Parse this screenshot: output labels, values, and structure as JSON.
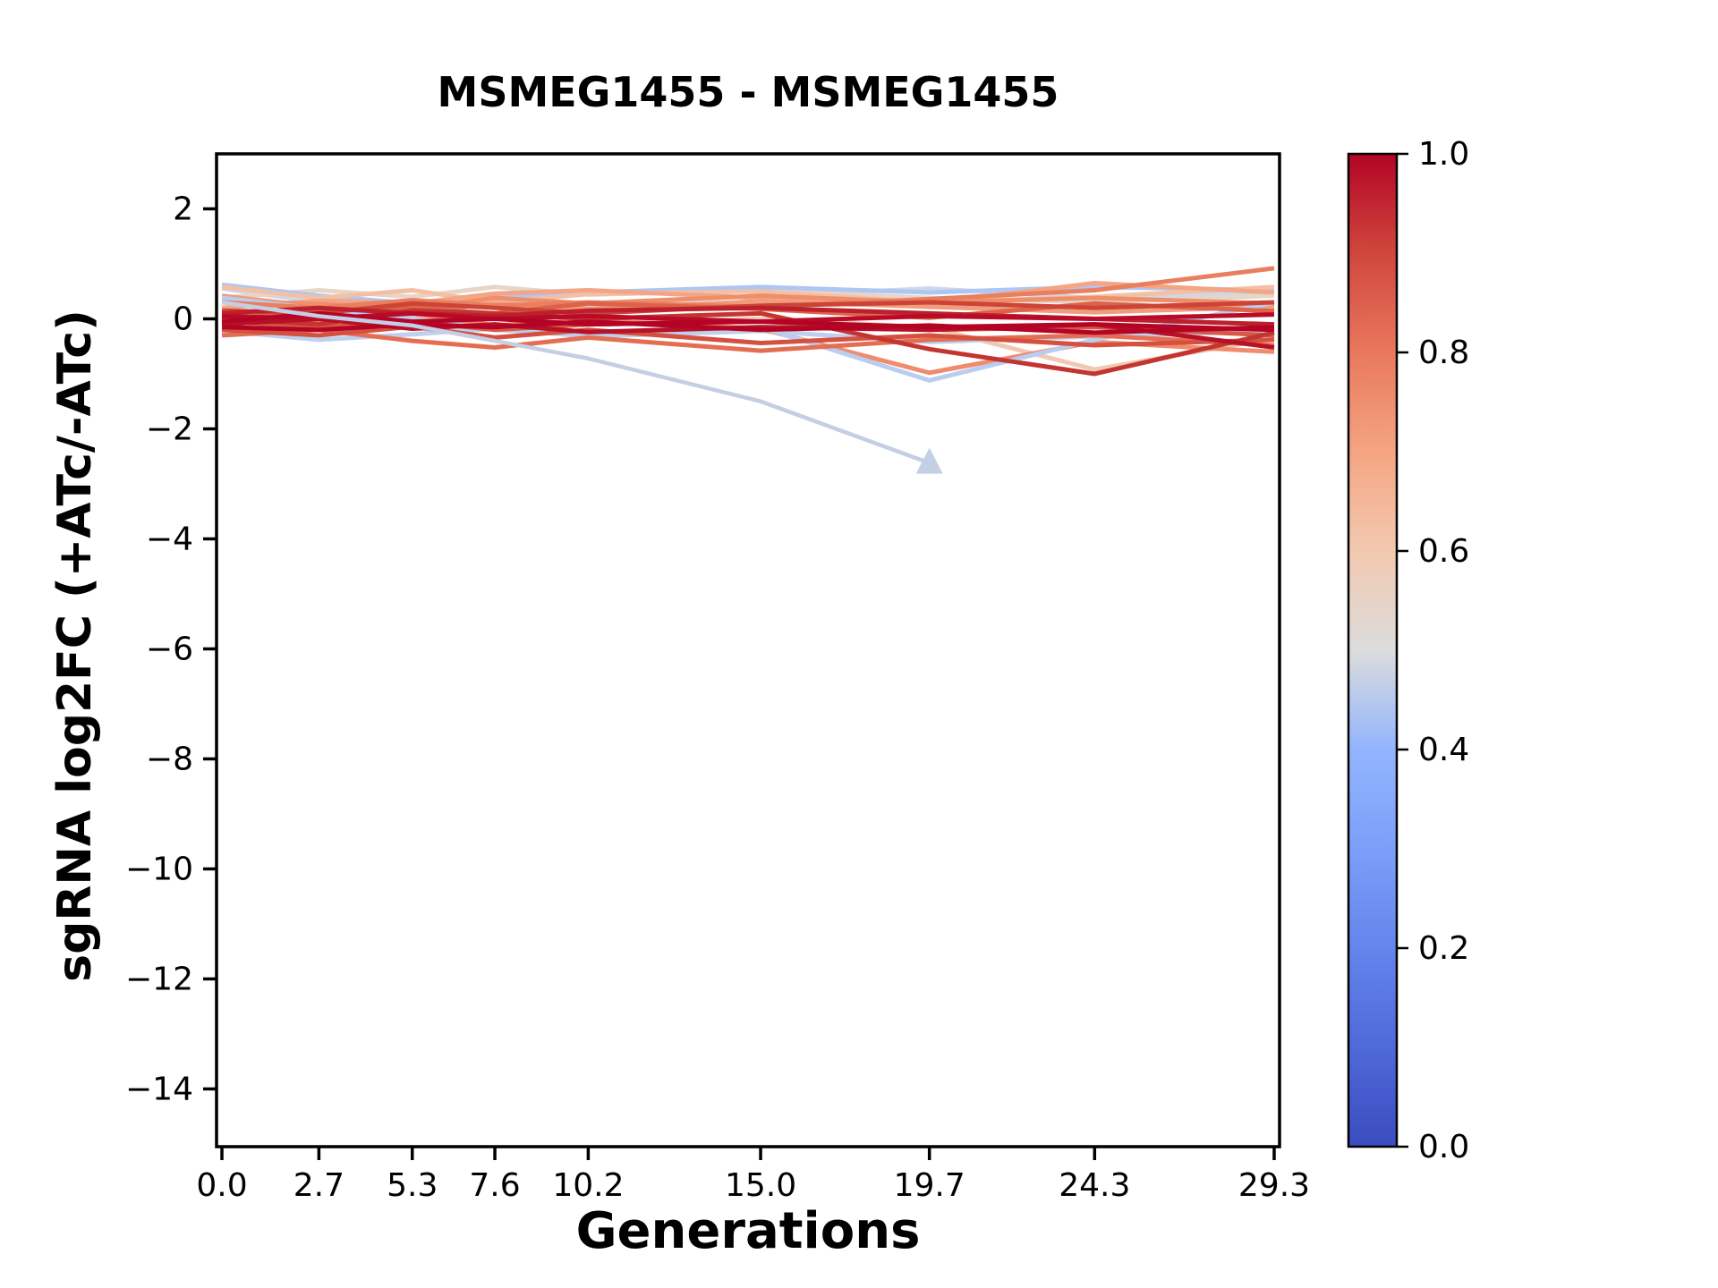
{
  "chart_data": {
    "type": "line",
    "title": "MSMEG1455 - MSMEG1455",
    "xlabel": "Generations",
    "ylabel": "sgRNA log2FC (+ATc/-ATc)",
    "x": [
      0.0,
      2.7,
      5.3,
      7.6,
      10.2,
      15.0,
      19.7,
      24.3,
      29.3
    ],
    "xtick_labels": [
      "0.0",
      "2.7",
      "5.3",
      "7.6",
      "10.2",
      "15.0",
      "19.7",
      "24.3",
      "29.3"
    ],
    "ytick_values": [
      2,
      0,
      -2,
      -4,
      -6,
      -8,
      -10,
      -12,
      -14
    ],
    "ytick_labels": [
      "2",
      "0",
      "−2",
      "−4",
      "−6",
      "−8",
      "−10",
      "−12",
      "−14"
    ],
    "xlim": [
      -0.15,
      29.45
    ],
    "ylim": [
      -15.05,
      3.0
    ],
    "grid": false,
    "legend": "none",
    "series": [
      {
        "cmap": 0.46,
        "color": "#ccd8ea",
        "values": [
          0.55,
          0.3,
          0.2,
          0.32,
          0.25,
          0.42,
          0.55,
          0.38,
          0.48
        ]
      },
      {
        "cmap": 0.56,
        "color": "#e7d5c8",
        "values": [
          0.38,
          0.52,
          0.4,
          0.58,
          0.44,
          0.52,
          0.38,
          0.3,
          0.42
        ]
      },
      {
        "cmap": 0.4,
        "color": "#aec6f2",
        "values": [
          0.62,
          0.42,
          0.28,
          0.38,
          0.48,
          0.58,
          0.48,
          0.58,
          0.52
        ]
      },
      {
        "cmap": 0.6,
        "color": "#f0c9b2",
        "values": [
          0.1,
          -0.05,
          0.06,
          -0.15,
          -0.1,
          0.0,
          -0.15,
          -0.92,
          -0.35
        ]
      },
      {
        "cmap": 0.43,
        "color": "#bfd0ee",
        "values": [
          -0.22,
          -0.38,
          -0.28,
          -0.18,
          -0.32,
          -0.22,
          -0.42,
          -0.32,
          -0.22
        ]
      },
      {
        "cmap": 0.62,
        "color": "#f3c0a6",
        "values": [
          0.58,
          0.38,
          0.52,
          0.3,
          0.45,
          0.5,
          0.3,
          0.4,
          0.58
        ]
      },
      {
        "cmap": 0.7,
        "color": "#f4a585",
        "values": [
          0.2,
          0.33,
          0.28,
          0.46,
          0.52,
          0.38,
          0.28,
          0.65,
          0.48
        ]
      },
      {
        "cmap": 0.72,
        "color": "#f19c7c",
        "values": [
          0.42,
          0.22,
          0.12,
          0.28,
          0.18,
          0.32,
          0.22,
          0.12,
          0.22
        ]
      },
      {
        "cmap": 0.75,
        "color": "#ef8e6b",
        "values": [
          0.32,
          0.27,
          0.18,
          0.38,
          0.28,
          0.42,
          0.3,
          0.38,
          0.28
        ]
      },
      {
        "cmap": 0.73,
        "color": "#f08b6e",
        "values": [
          0.08,
          -0.02,
          0.1,
          -0.12,
          -0.02,
          -0.18,
          -0.98,
          -0.42,
          -0.6
        ]
      },
      {
        "cmap": 0.42,
        "color": "#b9cdf0",
        "values": [
          0.38,
          0.18,
          0.0,
          -0.2,
          -0.28,
          -0.15,
          -1.12,
          -0.38,
          0.3
        ]
      },
      {
        "cmap": 0.78,
        "color": "#e97f5e",
        "values": [
          0.3,
          0.2,
          0.34,
          0.24,
          0.3,
          0.22,
          0.36,
          0.52,
          0.92
        ]
      },
      {
        "cmap": 0.8,
        "color": "#e56e52",
        "values": [
          -0.3,
          -0.2,
          -0.4,
          -0.52,
          -0.34,
          -0.58,
          -0.38,
          -0.3,
          -0.48
        ]
      },
      {
        "cmap": 0.83,
        "color": "#dd6249",
        "values": [
          0.0,
          0.14,
          0.2,
          0.1,
          0.28,
          0.18,
          0.02,
          0.28,
          0.14
        ]
      },
      {
        "cmap": 0.86,
        "color": "#d85847",
        "values": [
          -0.05,
          -0.15,
          -0.05,
          -0.2,
          -0.1,
          -0.05,
          -0.2,
          -0.15,
          -0.3
        ]
      },
      {
        "cmap": 0.87,
        "color": "#d4503f",
        "values": [
          -0.2,
          -0.3,
          -0.14,
          -0.34,
          -0.2,
          -0.44,
          -0.3,
          -0.48,
          -0.38
        ]
      },
      {
        "cmap": 0.9,
        "color": "#cc4437",
        "values": [
          0.15,
          0.1,
          0.28,
          0.2,
          0.1,
          0.24,
          0.3,
          0.2,
          0.3
        ]
      },
      {
        "cmap": 0.92,
        "color": "#c43531",
        "values": [
          0.0,
          -0.1,
          0.15,
          0.1,
          0.0,
          0.1,
          -0.55,
          -1.0,
          -0.25
        ]
      },
      {
        "cmap": 0.95,
        "color": "#bc202c",
        "values": [
          0.1,
          0.2,
          0.1,
          0.05,
          0.15,
          0.2,
          0.1,
          0.0,
          -0.1
        ]
      },
      {
        "cmap": 0.97,
        "color": "#b61127",
        "values": [
          -0.1,
          0.0,
          -0.18,
          -0.1,
          -0.24,
          -0.15,
          -0.2,
          -0.1,
          -0.52
        ]
      },
      {
        "cmap": 0.98,
        "color": "#b90a28",
        "values": [
          0.05,
          0.0,
          0.1,
          0.0,
          0.05,
          -0.05,
          0.05,
          0.0,
          0.08
        ]
      },
      {
        "cmap": 1.0,
        "color": "#b40426",
        "values": [
          -0.05,
          0.1,
          -0.05,
          0.0,
          -0.1,
          -0.05,
          -0.15,
          -0.1,
          -0.2
        ]
      },
      {
        "cmap": 1.0,
        "color": "#b40426",
        "values": [
          -0.15,
          -0.2,
          -0.1,
          -0.15,
          -0.05,
          -0.2,
          -0.12,
          -0.25,
          -0.15
        ]
      }
    ],
    "dropout_series": {
      "cmap": 0.45,
      "color": "#c4cfe3",
      "x": [
        0.0,
        2.7,
        5.3,
        7.6,
        10.2,
        15.0,
        19.7
      ],
      "values": [
        0.3,
        0.05,
        -0.12,
        -0.4,
        -0.72,
        -1.5,
        -2.62
      ],
      "marker": "triangle-up",
      "marker_at": [
        19.7,
        -2.62
      ]
    },
    "colorbar": {
      "tick_values": [
        1.0,
        0.8,
        0.6,
        0.4,
        0.2,
        0.0
      ],
      "tick_labels": [
        "1.0",
        "0.8",
        "0.6",
        "0.4",
        "0.2",
        "0.0"
      ],
      "cmap_name": "coolwarm",
      "gradient_stops": [
        [
          0.0,
          "#3b4cc0"
        ],
        [
          0.1,
          "#4f69d9"
        ],
        [
          0.2,
          "#6485ec"
        ],
        [
          0.3,
          "#7b9ff9"
        ],
        [
          0.4,
          "#93b5fe"
        ],
        [
          0.5,
          "#dcdcdc"
        ],
        [
          0.6,
          "#f2c9b0"
        ],
        [
          0.7,
          "#f4a582"
        ],
        [
          0.8,
          "#e9785e"
        ],
        [
          0.9,
          "#d0473d"
        ],
        [
          1.0,
          "#b40426"
        ]
      ]
    },
    "style": {
      "line_width": 5,
      "dropout_line_width": 4.5,
      "spine_color": "#000000",
      "background": "#ffffff"
    }
  }
}
